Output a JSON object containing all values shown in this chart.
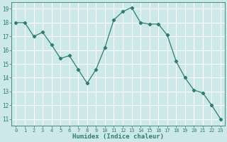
{
  "x": [
    0,
    1,
    2,
    3,
    4,
    5,
    6,
    7,
    8,
    9,
    10,
    11,
    12,
    13,
    14,
    15,
    16,
    17,
    18,
    19,
    20,
    21,
    22,
    23
  ],
  "y": [
    18.0,
    18.0,
    17.0,
    17.3,
    16.4,
    15.4,
    15.6,
    14.6,
    13.6,
    14.6,
    16.2,
    18.2,
    18.8,
    19.1,
    18.0,
    17.9,
    17.9,
    17.1,
    15.2,
    14.0,
    13.1,
    12.9,
    12.0,
    11.0
  ],
  "line_color": "#2e7d6e",
  "marker": "D",
  "marker_size": 2.2,
  "bg_color": "#cde8e8",
  "grid_color": "#ffffff",
  "grid_minor_color": "#e8f5f5",
  "xlabel": "Humidex (Indice chaleur)",
  "ylabel_ticks": [
    11,
    12,
    13,
    14,
    15,
    16,
    17,
    18,
    19
  ],
  "xlim": [
    -0.5,
    23.5
  ],
  "ylim": [
    10.5,
    19.5
  ],
  "tick_color": "#2e7d6e",
  "label_color": "#2e7d6e"
}
